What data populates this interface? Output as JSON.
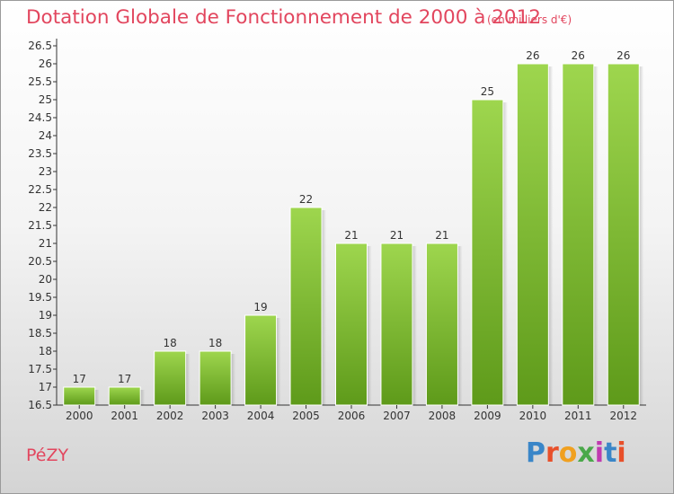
{
  "header": {
    "title": "Dotation Globale de Fonctionnement de 2000 à 2012",
    "subtitle": "(en milliers d'€)"
  },
  "commune_name": "PéZY",
  "logo": {
    "text": "Proxiti",
    "colors": [
      "#3a86c8",
      "#e8502a",
      "#f0a020",
      "#4aa84a",
      "#c03ab0",
      "#3a86c8",
      "#e8502a"
    ]
  },
  "colors": {
    "bar_light": "#9ed64e",
    "bar_dark": "#5e9a1a",
    "accent": "#e2465e"
  },
  "chart_data": {
    "type": "bar",
    "title": "Dotation Globale de Fonctionnement de 2000 à 2012",
    "subtitle": "(en milliers d'€)",
    "xlabel": "",
    "ylabel": "",
    "categories": [
      "2000",
      "2001",
      "2002",
      "2003",
      "2004",
      "2005",
      "2006",
      "2007",
      "2008",
      "2009",
      "2010",
      "2011",
      "2012"
    ],
    "values": [
      17,
      17,
      18,
      18,
      19,
      22,
      21,
      21,
      21,
      25,
      26,
      26,
      26
    ],
    "ylim": [
      16.5,
      26.5
    ],
    "yticks": [
      "16.5",
      "17",
      "17.5",
      "18",
      "18.5",
      "19",
      "19.5",
      "20",
      "20.5",
      "21",
      "21.5",
      "22",
      "22.5",
      "23",
      "23.5",
      "24",
      "24.5",
      "25",
      "25.5",
      "26",
      "26.5"
    ],
    "grid": false,
    "legend": "none"
  }
}
